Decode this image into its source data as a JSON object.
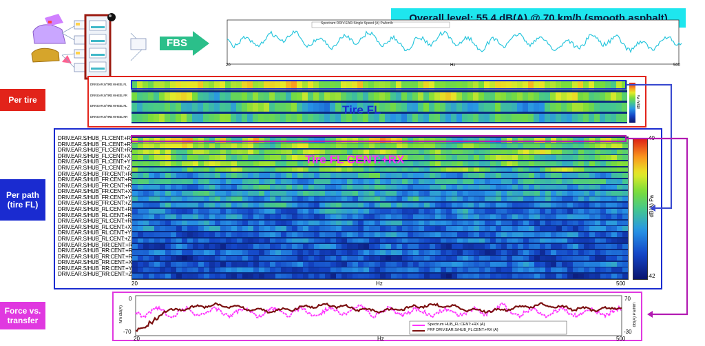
{
  "header": {
    "overall_level": "Overall level: 55.4 dB(A) @ 70 km/h (smooth asphalt)",
    "fbs_label": "FBS"
  },
  "top_chart": {
    "legend": "Spectrum DRIV.EAR.Single Speed (A) Pa/km/h",
    "xtick_left": "20",
    "xtick_mid": "Hz",
    "xtick_right": "500",
    "line_color": "#29c6dd"
  },
  "side_labels": {
    "per_tire": "Per tire",
    "per_path": "Per path\n(tire FL)",
    "force_vs_transfer": "Force vs.\ntransfer"
  },
  "tire_panel": {
    "rows": [
      "DRIV.EAR.S/TIRE WHEEL FL",
      "DRIV.EAR.S/TIRE WHEEL FR",
      "DRIV.EAR.S/TIRE WHEEL RL",
      "DRIV.EAR.S/TIRE WHEEL RR"
    ],
    "overlay": "Tire FL",
    "colorbar_unit": "dB(A) Pa"
  },
  "path_panel": {
    "rows": [
      "DRIV.EAR.S/HUB_FL:CENT:+RX",
      "DRIV.EAR.S/HUB_FL:CENT:+RY",
      "DRIV.EAR.S/HUB_FL:CENT:+RZ",
      "DRIV.EAR.S/HUB_FL:CENT:+X",
      "DRIV.EAR.S/HUB_FL:CENT:+Y",
      "DRIV.EAR.S/HUB_FL:CENT:+Z",
      "DRIV.EAR.S/HUB_FR:CENT:+RX",
      "DRIV.EAR.S/HUB_FR:CENT:+RY",
      "DRIV.EAR.S/HUB_FR:CENT:+RZ",
      "DRIV.EAR.S/HUB_FR:CENT:+X",
      "DRIV.EAR.S/HUB_FR:CENT:+Y",
      "DRIV.EAR.S/HUB_FR:CENT:+Z",
      "DRIV.EAR.S/HUB_RL:CENT:+RX",
      "DRIV.EAR.S/HUB_RL:CENT:+RY",
      "DRIV.EAR.S/HUB_RL:CENT:+RZ",
      "DRIV.EAR.S/HUB_RL:CENT:+X",
      "DRIV.EAR.S/HUB_RL:CENT:+Y",
      "DRIV.EAR.S/HUB_RL:CENT:+Z",
      "DRIV.EAR.S/HUB_RR:CENT:+RX",
      "DRIV.EAR.S/HUB_RR:CENT:+RY",
      "DRIV.EAR.S/HUB_RR:CENT:+RZ",
      "DRIV.EAR.S/HUB_RR:CENT:+X",
      "DRIV.EAR.S/HUB_RR:CENT:+Y",
      "DRIV.EAR.S/HUB_RR:CENT:+Z"
    ],
    "overlay": "Tire FL CENT:+RX",
    "xtick_left": "20",
    "xtick_mid": "Hz",
    "xtick_right": "500",
    "colorbar_top": "40",
    "colorbar_bottom": "-42",
    "colorbar_unit": "dB(A) Pa"
  },
  "bottom_chart": {
    "legend_magenta": "Spectrum HUB_FL:CENT:+RX (A)",
    "legend_brown": "FRF DRIV.EAR.S/HUB_FL:CENT:+RX (A)",
    "left_unit": "Nm dB(A)",
    "right_unit": "dB(A) Pa/Nm",
    "ytick_left_top": "0",
    "ytick_left_bottom": "-70",
    "ytick_right_top": "70",
    "ytick_right_bottom": "-30",
    "xtick_left": "20",
    "xtick_mid": "Hz",
    "xtick_right": "500",
    "magenta_color": "#ff33ff",
    "brown_color": "#7b1010"
  },
  "colors": {
    "red_box": "#e2231a",
    "blue_box": "#1a2bd0",
    "magenta_box": "#e038e0",
    "overlay_magenta": "#ff30ff",
    "fbs_arrow": "#2bbf8a",
    "banner_bg": "#1ee6ee"
  }
}
